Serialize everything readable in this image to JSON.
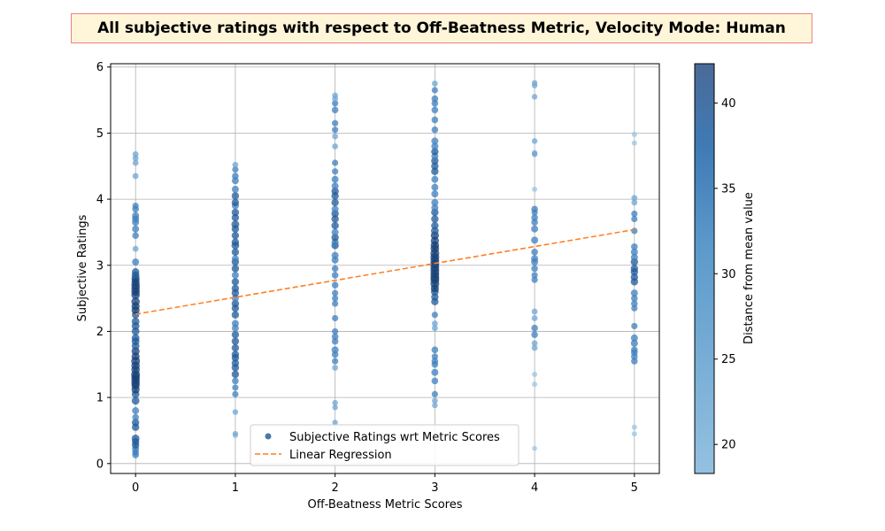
{
  "chart_data": {
    "type": "scatter",
    "title": "All subjective ratings with respect to Off-Beatness Metric, Velocity Mode: Human",
    "xlabel": "Off-Beatness Metric Scores",
    "ylabel": "Subjective Ratings",
    "xlim": [
      -0.25,
      5.25
    ],
    "ylim": [
      -0.15,
      6.05
    ],
    "x_ticks": [
      "0",
      "1",
      "2",
      "3",
      "4",
      "5"
    ],
    "y_ticks": [
      "0",
      "1",
      "2",
      "3",
      "4",
      "5",
      "6"
    ],
    "grid": true,
    "legend_position": "lower-center",
    "colorbar": {
      "label": "Distance from mean value",
      "range": [
        18.3,
        42.3
      ],
      "ticks": [
        "20",
        "25",
        "30",
        "35",
        "40"
      ],
      "colors": [
        "#94c1e0",
        "#3f7ab4",
        "#4b6a98"
      ]
    },
    "series": [
      {
        "name": "Subjective Ratings wrt Metric Scores",
        "kind": "scatter",
        "color": "#4a78aa",
        "columns": [
          {
            "x": 0,
            "y": [
              0.13,
              0.17,
              0.22,
              0.28,
              0.33,
              0.38,
              0.55,
              0.62,
              0.7,
              0.8,
              0.95,
              1.05,
              1.12,
              1.18,
              1.22,
              1.27,
              1.31,
              1.35,
              1.42,
              1.48,
              1.55,
              1.62,
              1.7,
              1.78,
              1.85,
              1.9,
              2.0,
              2.08,
              2.15,
              2.25,
              2.32,
              2.38,
              2.45,
              2.55,
              2.6,
              2.65,
              2.7,
              2.75,
              2.8,
              2.85,
              2.9,
              3.05,
              3.25,
              3.45,
              3.55,
              3.65,
              3.7,
              3.75,
              3.85,
              3.9,
              4.35,
              4.55,
              4.62,
              4.68
            ]
          },
          {
            "x": 1,
            "y": [
              0.42,
              0.45,
              0.78,
              1.05,
              1.15,
              1.25,
              1.35,
              1.45,
              1.52,
              1.6,
              1.65,
              1.75,
              1.85,
              1.95,
              2.05,
              2.12,
              2.25,
              2.35,
              2.42,
              2.5,
              2.58,
              2.65,
              2.75,
              2.85,
              2.95,
              3.05,
              3.1,
              3.2,
              3.3,
              3.35,
              3.45,
              3.55,
              3.62,
              3.72,
              3.8,
              3.9,
              3.95,
              4.05,
              4.15,
              4.28,
              4.35,
              4.45,
              4.52
            ]
          },
          {
            "x": 2,
            "y": [
              0.62,
              0.85,
              0.92,
              1.45,
              1.55,
              1.65,
              1.72,
              1.85,
              1.92,
              2.0,
              2.2,
              2.42,
              2.5,
              2.58,
              2.7,
              2.85,
              2.95,
              3.08,
              3.15,
              3.3,
              3.35,
              3.42,
              3.5,
              3.6,
              3.7,
              3.78,
              3.85,
              3.95,
              4.05,
              4.12,
              4.2,
              4.3,
              4.42,
              4.55,
              4.8,
              4.95,
              5.05,
              5.15,
              5.35,
              5.45,
              5.52,
              5.57
            ]
          },
          {
            "x": 3,
            "y": [
              0.88,
              0.95,
              1.05,
              1.25,
              1.38,
              1.5,
              1.55,
              1.62,
              1.72,
              2.05,
              2.12,
              2.25,
              2.45,
              2.52,
              2.6,
              2.65,
              2.72,
              2.78,
              2.82,
              2.87,
              2.92,
              2.97,
              3.02,
              3.07,
              3.12,
              3.18,
              3.25,
              3.3,
              3.37,
              3.45,
              3.52,
              3.6,
              3.7,
              3.8,
              3.87,
              3.95,
              4.08,
              4.18,
              4.3,
              4.42,
              4.5,
              4.58,
              4.65,
              4.72,
              4.8,
              4.88,
              5.05,
              5.2,
              5.35,
              5.45,
              5.52,
              5.65,
              5.75
            ]
          },
          {
            "x": 4,
            "y": [
              0.23,
              1.2,
              1.35,
              1.75,
              1.82,
              1.95,
              2.05,
              2.2,
              2.3,
              2.78,
              2.85,
              2.95,
              3.05,
              3.1,
              3.2,
              3.38,
              3.55,
              3.65,
              3.72,
              3.8,
              3.85,
              4.15,
              4.68,
              4.7,
              4.88,
              5.55,
              5.72,
              5.76
            ]
          },
          {
            "x": 5,
            "y": [
              0.45,
              0.55,
              1.55,
              1.62,
              1.68,
              1.72,
              1.82,
              1.9,
              2.08,
              2.35,
              2.42,
              2.5,
              2.58,
              2.75,
              2.82,
              2.9,
              2.95,
              3.05,
              3.12,
              3.2,
              3.28,
              3.52,
              3.7,
              3.78,
              3.95,
              4.02,
              4.85,
              4.98
            ]
          }
        ]
      },
      {
        "name": "Linear Regression",
        "kind": "line",
        "color": "#ff7f27",
        "x": [
          0,
          5
        ],
        "y": [
          2.26,
          3.54
        ]
      }
    ]
  }
}
